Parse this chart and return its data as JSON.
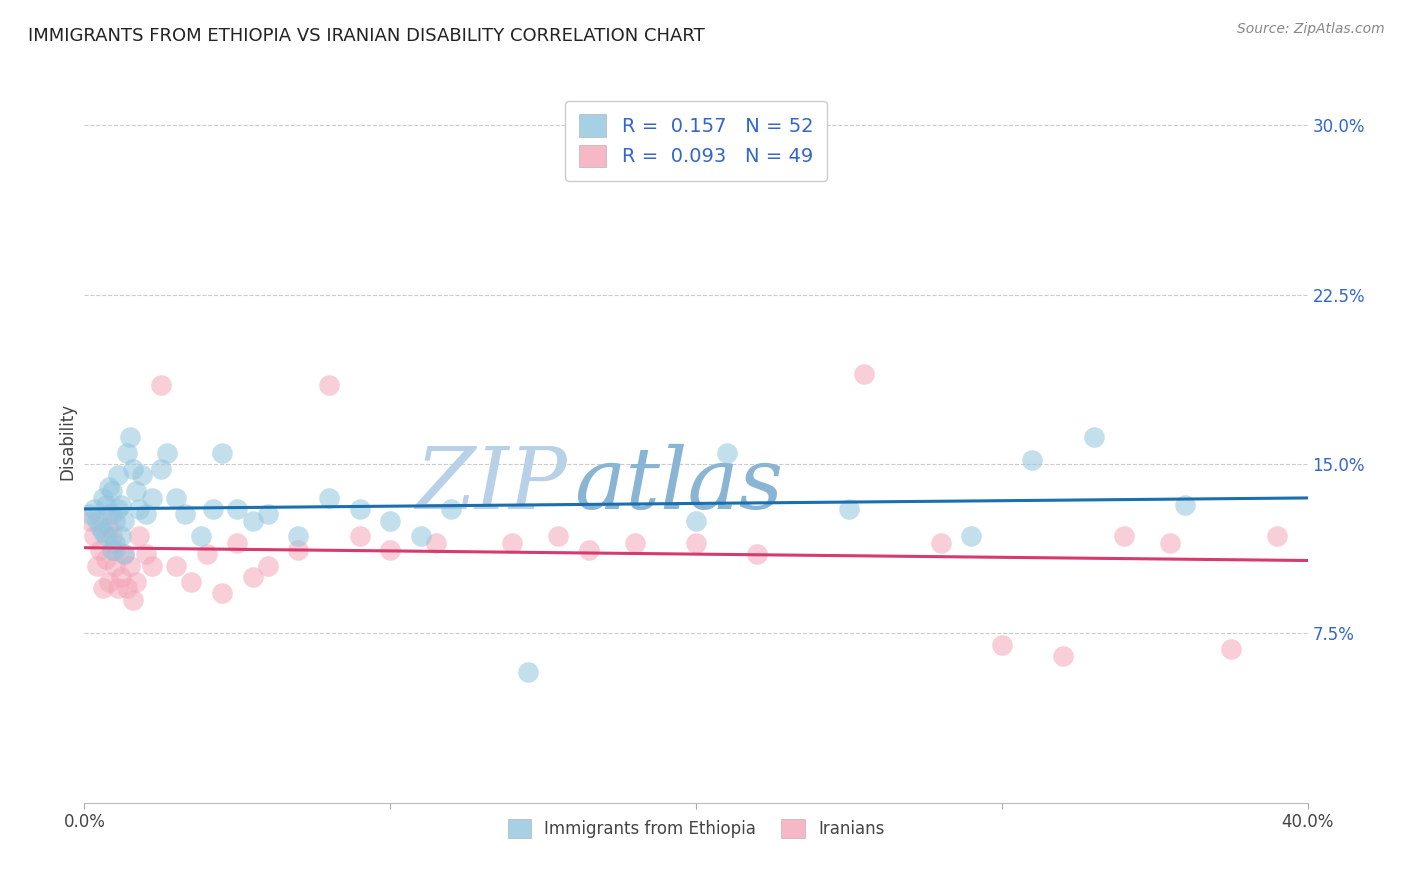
{
  "title": "IMMIGRANTS FROM ETHIOPIA VS IRANIAN DISABILITY CORRELATION CHART",
  "source": "Source: ZipAtlas.com",
  "ylabel": "Disability",
  "xlim": [
    0.0,
    0.4
  ],
  "ylim": [
    0.0,
    0.32
  ],
  "yticks": [
    0.075,
    0.15,
    0.225,
    0.3
  ],
  "ytick_labels": [
    "7.5%",
    "15.0%",
    "22.5%",
    "30.0%"
  ],
  "xticks": [
    0.0,
    0.1,
    0.2,
    0.3,
    0.4
  ],
  "xtick_labels": [
    "0.0%",
    "",
    "",
    "",
    "40.0%"
  ],
  "blue_R": 0.157,
  "blue_N": 52,
  "pink_R": 0.093,
  "pink_N": 49,
  "blue_color": "#92c5de",
  "pink_color": "#f4a6b8",
  "blue_line_color": "#1a6faf",
  "pink_line_color": "#d63a6e",
  "legend_value_color": "#3366cc",
  "title_color": "#222222",
  "grid_color": "#cccccc",
  "background_color": "#ffffff",
  "blue_scatter_x": [
    0.002,
    0.003,
    0.004,
    0.005,
    0.006,
    0.006,
    0.007,
    0.007,
    0.008,
    0.008,
    0.009,
    0.009,
    0.01,
    0.01,
    0.011,
    0.011,
    0.012,
    0.012,
    0.013,
    0.013,
    0.014,
    0.015,
    0.016,
    0.017,
    0.018,
    0.019,
    0.02,
    0.022,
    0.025,
    0.027,
    0.03,
    0.033,
    0.038,
    0.042,
    0.045,
    0.05,
    0.055,
    0.06,
    0.07,
    0.08,
    0.09,
    0.1,
    0.11,
    0.12,
    0.145,
    0.2,
    0.21,
    0.25,
    0.29,
    0.31,
    0.33,
    0.36
  ],
  "blue_scatter_y": [
    0.128,
    0.13,
    0.125,
    0.122,
    0.135,
    0.12,
    0.132,
    0.118,
    0.128,
    0.14,
    0.112,
    0.138,
    0.125,
    0.115,
    0.13,
    0.145,
    0.118,
    0.132,
    0.125,
    0.11,
    0.155,
    0.162,
    0.148,
    0.138,
    0.13,
    0.145,
    0.128,
    0.135,
    0.148,
    0.155,
    0.135,
    0.128,
    0.118,
    0.13,
    0.155,
    0.13,
    0.125,
    0.128,
    0.118,
    0.135,
    0.13,
    0.125,
    0.118,
    0.13,
    0.058,
    0.125,
    0.155,
    0.13,
    0.118,
    0.152,
    0.162,
    0.132
  ],
  "pink_scatter_x": [
    0.002,
    0.003,
    0.004,
    0.005,
    0.006,
    0.007,
    0.008,
    0.008,
    0.009,
    0.009,
    0.01,
    0.01,
    0.011,
    0.012,
    0.013,
    0.014,
    0.015,
    0.016,
    0.017,
    0.018,
    0.02,
    0.022,
    0.025,
    0.03,
    0.035,
    0.04,
    0.045,
    0.05,
    0.055,
    0.06,
    0.07,
    0.08,
    0.09,
    0.1,
    0.115,
    0.14,
    0.155,
    0.165,
    0.18,
    0.2,
    0.22,
    0.255,
    0.28,
    0.3,
    0.32,
    0.34,
    0.355,
    0.375,
    0.39
  ],
  "pink_scatter_y": [
    0.125,
    0.118,
    0.105,
    0.112,
    0.095,
    0.108,
    0.122,
    0.098,
    0.118,
    0.128,
    0.105,
    0.112,
    0.095,
    0.1,
    0.11,
    0.095,
    0.105,
    0.09,
    0.098,
    0.118,
    0.11,
    0.105,
    0.185,
    0.105,
    0.098,
    0.11,
    0.093,
    0.115,
    0.1,
    0.105,
    0.112,
    0.185,
    0.118,
    0.112,
    0.115,
    0.115,
    0.118,
    0.112,
    0.115,
    0.115,
    0.11,
    0.19,
    0.115,
    0.07,
    0.065,
    0.118,
    0.115,
    0.068,
    0.118
  ]
}
